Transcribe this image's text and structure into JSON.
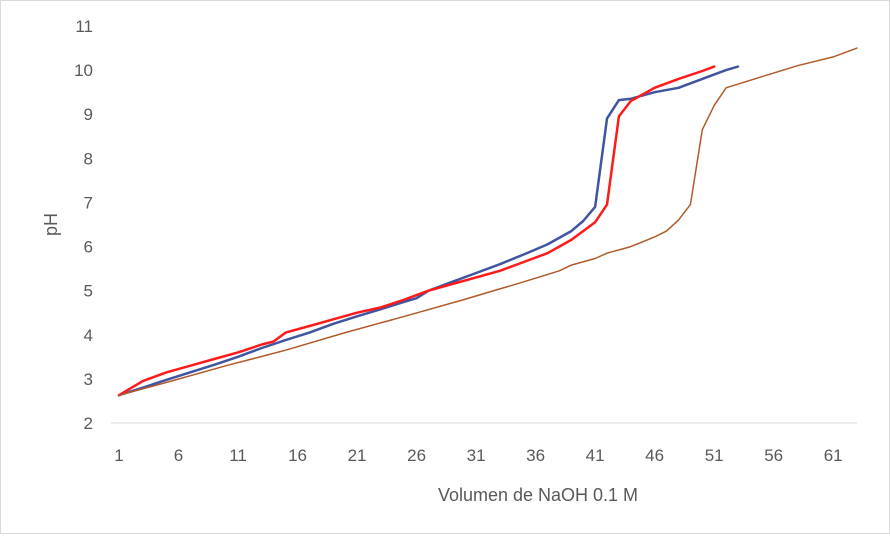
{
  "chart_data": {
    "type": "line",
    "title": "",
    "xlabel": "Volumen de NaOH 0.1 M",
    "ylabel": "pH",
    "xlim": [
      1,
      63
    ],
    "ylim": [
      2,
      11
    ],
    "x_ticks": [
      "1",
      "6",
      "11",
      "16",
      "21",
      "26",
      "31",
      "36",
      "41",
      "46",
      "51",
      "56",
      "61"
    ],
    "y_ticks": [
      "2",
      "3",
      "4",
      "5",
      "6",
      "7",
      "8",
      "9",
      "10",
      "11"
    ],
    "grid": false,
    "legend": "none",
    "series": [
      {
        "color": "#4055a0",
        "stroke": 2.5,
        "x": [
          1,
          3,
          5,
          7,
          9,
          11,
          13,
          15,
          17,
          19,
          21,
          23,
          25,
          26,
          27,
          29,
          31,
          33,
          35,
          37,
          39,
          40,
          41,
          42,
          43,
          44,
          46,
          48,
          50,
          52,
          53
        ],
        "y": [
          2.63,
          2.8,
          2.98,
          3.15,
          3.32,
          3.5,
          3.7,
          3.88,
          4.05,
          4.25,
          4.42,
          4.58,
          4.75,
          4.83,
          5.0,
          5.2,
          5.4,
          5.6,
          5.82,
          6.05,
          6.35,
          6.58,
          6.9,
          8.9,
          9.32,
          9.35,
          9.5,
          9.6,
          9.8,
          10.0,
          10.08
        ]
      },
      {
        "color": "#ff1a1a",
        "stroke": 2.5,
        "x": [
          1,
          3,
          5,
          7,
          9,
          11,
          13,
          14,
          15,
          17,
          19,
          21,
          23,
          25,
          26,
          27,
          29,
          31,
          33,
          35,
          37,
          39,
          41,
          42,
          43,
          44,
          46,
          48,
          50,
          51
        ],
        "y": [
          2.63,
          2.95,
          3.15,
          3.3,
          3.45,
          3.6,
          3.78,
          3.85,
          4.05,
          4.2,
          4.35,
          4.5,
          4.62,
          4.8,
          4.9,
          5.0,
          5.15,
          5.3,
          5.45,
          5.65,
          5.85,
          6.15,
          6.55,
          6.95,
          8.95,
          9.3,
          9.6,
          9.8,
          9.98,
          10.08
        ]
      },
      {
        "color": "#b05a2a",
        "stroke": 1.5,
        "x": [
          1,
          5,
          10,
          15,
          20,
          25,
          30,
          35,
          38,
          39,
          41,
          42,
          44,
          46,
          47,
          48,
          49,
          50,
          51,
          52,
          55,
          58,
          61,
          63
        ],
        "y": [
          2.63,
          2.92,
          3.3,
          3.65,
          4.05,
          4.42,
          4.8,
          5.2,
          5.45,
          5.58,
          5.73,
          5.85,
          6.0,
          6.22,
          6.35,
          6.6,
          6.95,
          8.65,
          9.2,
          9.6,
          9.85,
          10.1,
          10.3,
          10.5
        ]
      }
    ]
  }
}
